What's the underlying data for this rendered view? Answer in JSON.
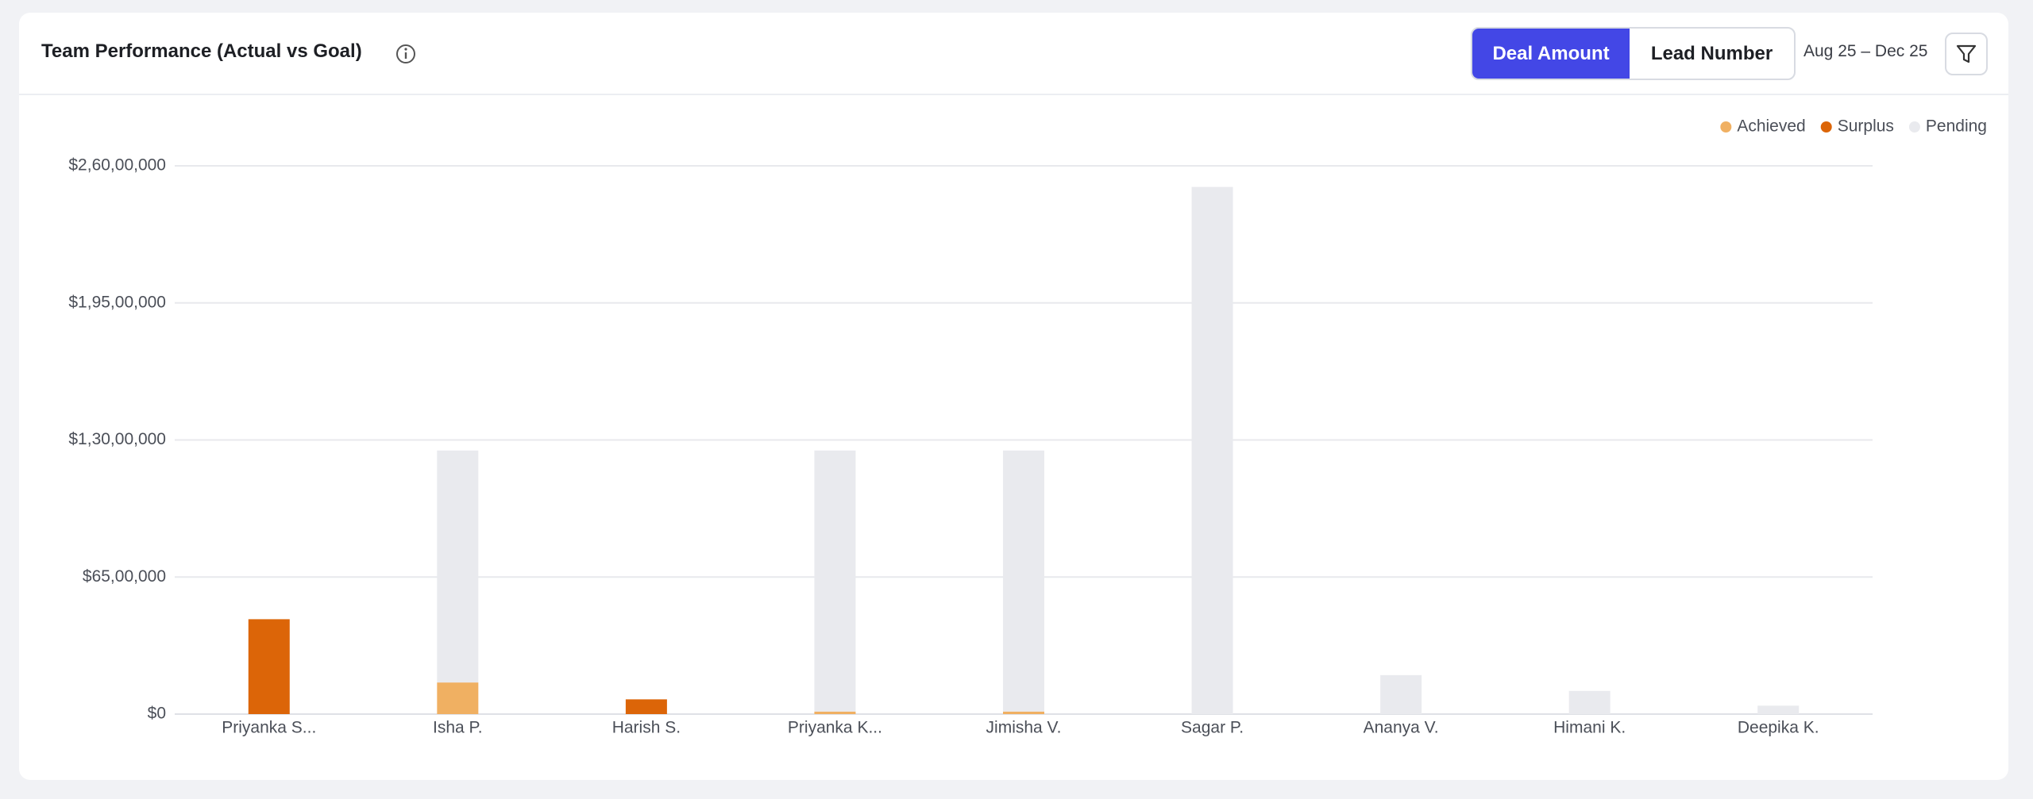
{
  "header": {
    "title": "Team Performance (Actual vs Goal)",
    "toggle": [
      "Deal Amount",
      "Lead Number"
    ],
    "date_range": "Aug 25 – Dec 25"
  },
  "chart_data": {
    "type": "stacked-bar",
    "categories": [
      "Priyanka S...",
      "Isha P.",
      "Harish S.",
      "Priyanka K...",
      "Jimisha V.",
      "Sagar P.",
      "Ananya V.",
      "Himani K.",
      "Deepika K."
    ],
    "series": [
      {
        "name": "Achieved",
        "color": "#f0b062",
        "values": [
          0,
          1500000,
          0,
          120000,
          120000,
          0,
          0,
          0,
          0
        ]
      },
      {
        "name": "Surplus",
        "color": "#dc6508",
        "values": [
          4500000,
          0,
          700000,
          0,
          0,
          0,
          0,
          0,
          0
        ]
      },
      {
        "name": "Pending",
        "color": "#e9eaee",
        "values": [
          0,
          11000000,
          0,
          12380000,
          12380000,
          25000000,
          1850000,
          1100000,
          400000
        ]
      }
    ],
    "ylim": [
      0,
      26000000
    ],
    "yticks": [
      {
        "value": 0,
        "label": "$0"
      },
      {
        "value": 6500000,
        "label": "$65,00,000"
      },
      {
        "value": 13000000,
        "label": "$1,30,00,000"
      },
      {
        "value": 19500000,
        "label": "$1,95,00,000"
      },
      {
        "value": 26000000,
        "label": "$2,60,00,000"
      }
    ],
    "grid": true,
    "legend": "top-right"
  }
}
